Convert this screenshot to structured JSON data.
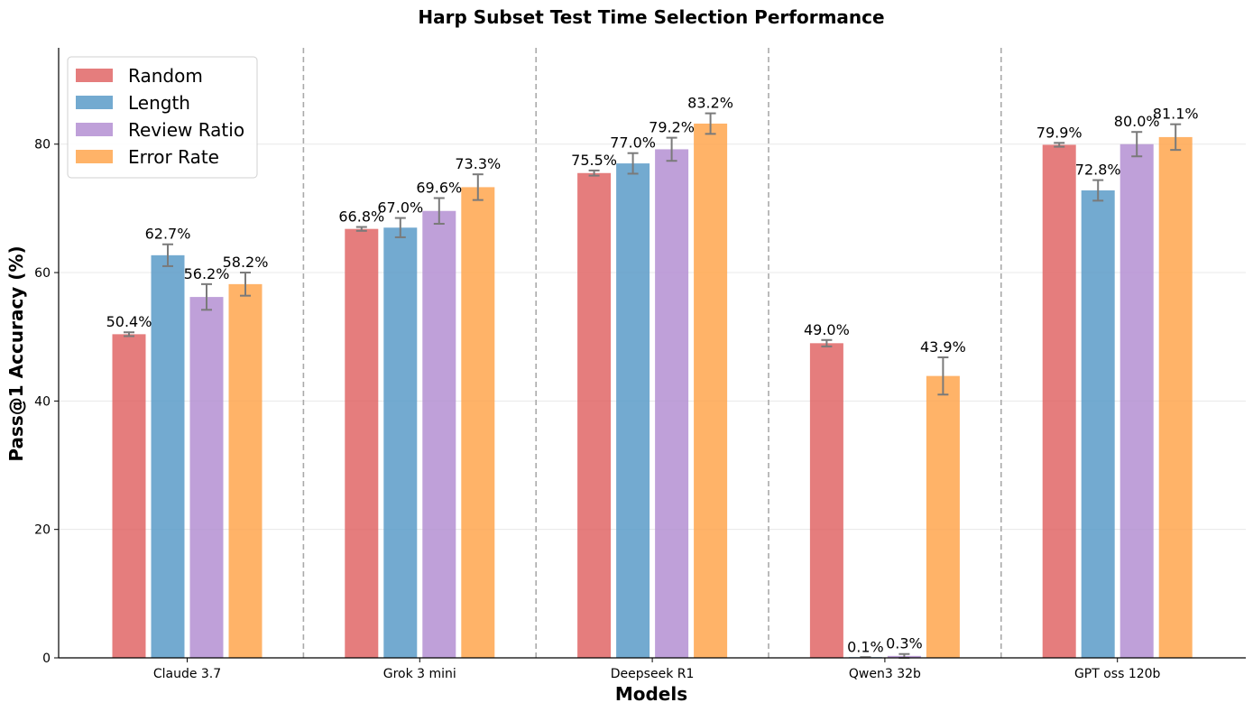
{
  "chart_data": {
    "type": "bar",
    "title": "Harp Subset Test Time Selection Performance",
    "xlabel": "Models",
    "ylabel": "Pass@1 Accuracy (%)",
    "ylim": [
      0,
      95
    ],
    "yticks": [
      0,
      20,
      40,
      60,
      80
    ],
    "grid": "horizontal",
    "legend_position": "top-left",
    "categories": [
      "Claude 3.7",
      "Grok 3 mini",
      "Deepseek R1",
      "Qwen3 32b",
      "GPT oss 120b"
    ],
    "series": [
      {
        "name": "Random",
        "color": "#e06666",
        "values": [
          50.4,
          66.8,
          75.5,
          49.0,
          79.9
        ],
        "errors": [
          0.3,
          0.3,
          0.4,
          0.5,
          0.3
        ],
        "labels": [
          "50.4%",
          "66.8%",
          "75.5%",
          "49.0%",
          "79.9%"
        ]
      },
      {
        "name": "Length",
        "color": "#5b9bc8",
        "values": [
          62.7,
          67.0,
          77.0,
          0.1,
          72.8
        ],
        "errors": [
          1.7,
          1.5,
          1.6,
          0.0,
          1.6
        ],
        "labels": [
          "62.7%",
          "67.0%",
          "77.0%",
          "0.1%",
          "72.8%"
        ]
      },
      {
        "name": "Review Ratio",
        "color": "#b48fd2",
        "values": [
          56.2,
          69.6,
          79.2,
          0.3,
          80.0
        ],
        "errors": [
          2.0,
          2.0,
          1.8,
          0.3,
          1.9
        ],
        "labels": [
          "56.2%",
          "69.6%",
          "79.2%",
          "0.3%",
          "80.0%"
        ]
      },
      {
        "name": "Error Rate",
        "color": "#ffa64d",
        "values": [
          58.2,
          73.3,
          83.2,
          43.9,
          81.1
        ],
        "errors": [
          1.8,
          2.0,
          1.6,
          2.9,
          2.0
        ],
        "labels": [
          "58.2%",
          "73.3%",
          "83.2%",
          "43.9%",
          "81.1%"
        ]
      }
    ]
  }
}
